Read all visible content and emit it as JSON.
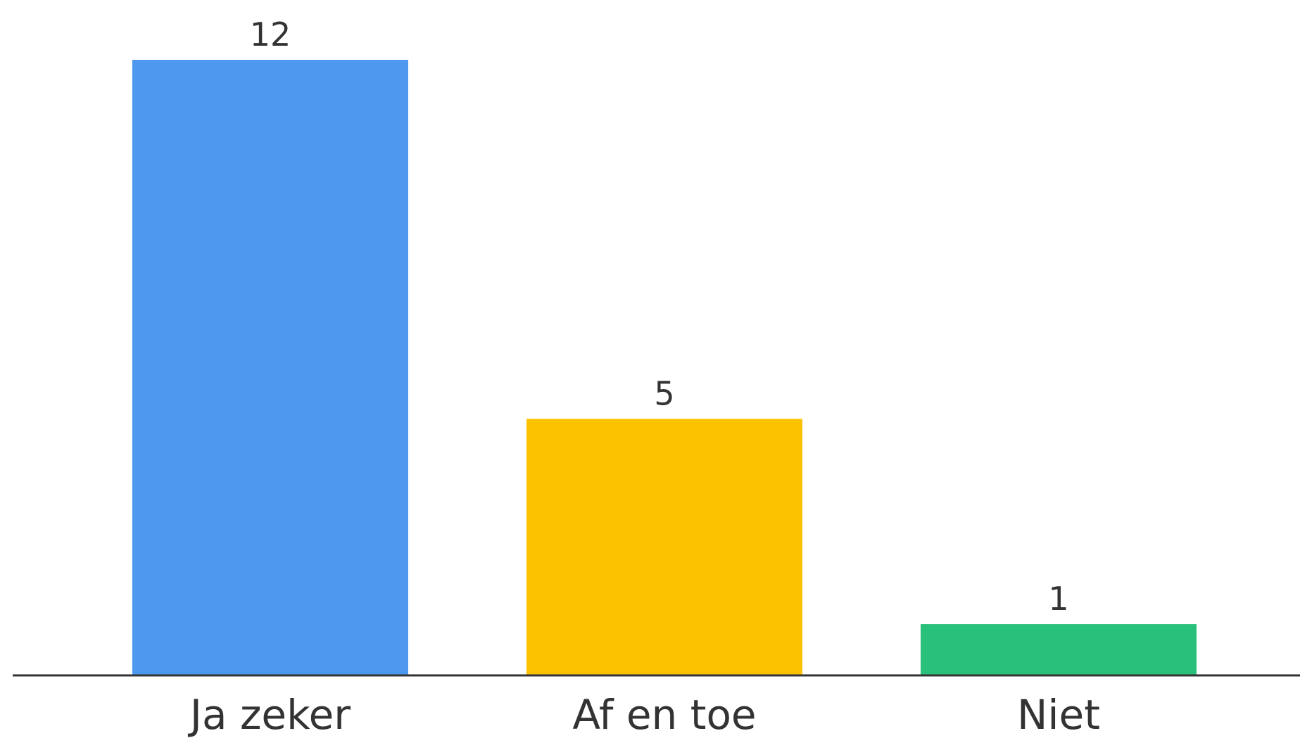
{
  "chart_data": {
    "type": "bar",
    "categories": [
      "Ja zeker",
      "Af en toe",
      "Niet"
    ],
    "values": [
      12,
      5,
      1
    ],
    "colors": [
      "#4f98ef",
      "#fcc200",
      "#28c07b"
    ]
  }
}
